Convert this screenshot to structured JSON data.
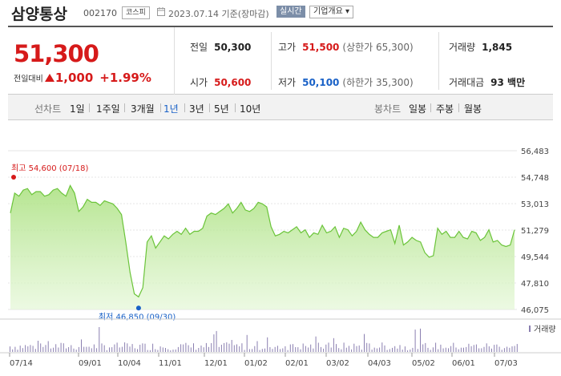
{
  "header": {
    "name": "삼양통상",
    "code": "002170",
    "market_badge": "코스피",
    "date_text": "2023.07.14 기준(장마감)",
    "realtime_label": "실시간",
    "company_button": "기업개요 ▾"
  },
  "quote": {
    "price": "51,300",
    "change_label": "전일대비",
    "change_amount": "1,000",
    "change_percent": "+1.99%",
    "stats": {
      "prev_close_label": "전일",
      "prev_close": "50,300",
      "high_label": "고가",
      "high": "51,500",
      "upper_limit": "(상한가 65,300)",
      "volume_label": "거래량",
      "volume": "1,845",
      "open_label": "시가",
      "open": "50,600",
      "low_label": "저가",
      "low": "50,100",
      "lower_limit": "(하한가 35,300)",
      "amount_label": "거래대금",
      "amount": "93 백만"
    }
  },
  "period_bar": {
    "line_label": "선차트",
    "periods": [
      "1일",
      "1주일",
      "3개월",
      "1년",
      "3년",
      "5년",
      "10년"
    ],
    "active_period": "1년",
    "candle_label": "봉차트",
    "candles": [
      "일봉",
      "주봉",
      "월봉"
    ]
  },
  "chart_data": {
    "type": "area",
    "y_ticks": [
      "56,483",
      "54,748",
      "53,013",
      "51,279",
      "49,544",
      "47,810",
      "46,075"
    ],
    "y_range": [
      46075,
      56483
    ],
    "x_labels": [
      "07/14",
      "09/01",
      "10/04",
      "11/01",
      "12/01",
      "01/02",
      "02/01",
      "03/02",
      "04/03",
      "05/02",
      "06/01",
      "07/03"
    ],
    "high_annotation": "최고 54,600 (07/18)",
    "low_annotation": "최저 46,850 (09/30)",
    "volume_label": "거래량",
    "series": [
      52400,
      53700,
      53500,
      53900,
      54000,
      53600,
      53800,
      53800,
      53500,
      53600,
      53900,
      54000,
      53700,
      53500,
      54200,
      53700,
      52500,
      52800,
      53300,
      53100,
      53100,
      52900,
      53200,
      53100,
      53000,
      52700,
      52300,
      50500,
      48500,
      47100,
      46900,
      47500,
      50500,
      50900,
      50100,
      50500,
      50900,
      50700,
      51000,
      51200,
      51000,
      51400,
      51000,
      51200,
      51200,
      51400,
      52200,
      52400,
      52300,
      52500,
      52700,
      53000,
      52400,
      52700,
      53100,
      52600,
      52500,
      52700,
      53100,
      53000,
      52800,
      51500,
      50900,
      51000,
      51200,
      51100,
      51300,
      51500,
      51100,
      51300,
      50800,
      51100,
      51000,
      51600,
      51100,
      51200,
      51500,
      50800,
      51400,
      51300,
      50900,
      51200,
      51800,
      51300,
      51000,
      50800,
      50800,
      51100,
      51200,
      51300,
      50400,
      51600,
      50300,
      50500,
      50800,
      50600,
      50500,
      49800,
      49500,
      49600,
      51400,
      51000,
      51200,
      50800,
      50800,
      51200,
      50800,
      50700,
      51200,
      51100,
      50600,
      50800,
      51300,
      50500,
      50600,
      50300,
      50200,
      50300,
      51300
    ]
  }
}
